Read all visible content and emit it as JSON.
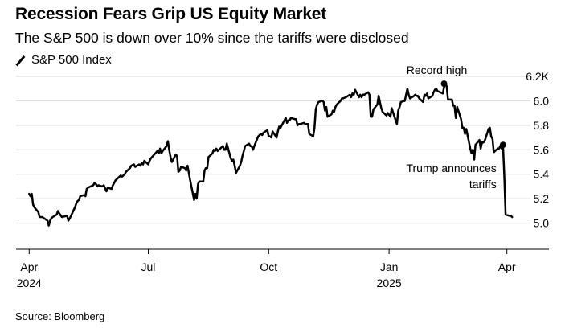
{
  "chart_data": {
    "type": "line",
    "title": "Recession Fears Grip US Equity Market",
    "subtitle": "The S&P 500 is down over 10% since the tariffs were disclosed",
    "legend": [
      {
        "label": "S&P 500 Index",
        "marker": "line"
      }
    ],
    "source": "Source: Bloomberg",
    "ylabel": "",
    "xlabel": "",
    "ylim": [
      4.8,
      6.2
    ],
    "yticks": [
      {
        "value": 5.0,
        "label": "5.0"
      },
      {
        "value": 5.2,
        "label": "5.2"
      },
      {
        "value": 5.4,
        "label": "5.4"
      },
      {
        "value": 5.6,
        "label": "5.6"
      },
      {
        "value": 5.8,
        "label": "5.8"
      },
      {
        "value": 6.0,
        "label": "6.0"
      },
      {
        "value": 6.2,
        "label": "6.2K"
      }
    ],
    "xlim": [
      -10,
      383
    ],
    "xticks": [
      {
        "value": 0,
        "label": "Apr",
        "label2": "2024"
      },
      {
        "value": 91,
        "label": "Jul",
        "label2": ""
      },
      {
        "value": 183,
        "label": "Oct",
        "label2": ""
      },
      {
        "value": 275,
        "label": "Jan",
        "label2": "2025"
      },
      {
        "value": 365,
        "label": "Apr",
        "label2": ""
      }
    ],
    "x_unit": "days since 2024-04-01",
    "series": [
      {
        "name": "S&P 500 Index",
        "color": "#000000",
        "points": [
          [
            0,
            5.24
          ],
          [
            1,
            5.22
          ],
          [
            2,
            5.24
          ],
          [
            3,
            5.15
          ],
          [
            4,
            5.13
          ],
          [
            7,
            5.09
          ],
          [
            8,
            5.05
          ],
          [
            10,
            5.05
          ],
          [
            14,
            5.02
          ],
          [
            15,
            4.98
          ],
          [
            16,
            5.02
          ],
          [
            17,
            5.04
          ],
          [
            18,
            5.05
          ],
          [
            21,
            5.07
          ],
          [
            22,
            5.1
          ],
          [
            23,
            5.08
          ],
          [
            25,
            5.05
          ],
          [
            29,
            5.06
          ],
          [
            30,
            5.02
          ],
          [
            31,
            5.04
          ],
          [
            32,
            5.06
          ],
          [
            35,
            5.13
          ],
          [
            36,
            5.16
          ],
          [
            37,
            5.18
          ],
          [
            38,
            5.19
          ],
          [
            39,
            5.22
          ],
          [
            42,
            5.23
          ],
          [
            43,
            5.22
          ],
          [
            44,
            5.28
          ],
          [
            45,
            5.29
          ],
          [
            49,
            5.31
          ],
          [
            50,
            5.33
          ],
          [
            51,
            5.32
          ],
          [
            52,
            5.3
          ],
          [
            53,
            5.31
          ],
          [
            56,
            5.3
          ],
          [
            57,
            5.31
          ],
          [
            59,
            5.26
          ],
          [
            60,
            5.29
          ],
          [
            63,
            5.28
          ],
          [
            64,
            5.31
          ],
          [
            65,
            5.33
          ],
          [
            66,
            5.35
          ],
          [
            67,
            5.36
          ],
          [
            70,
            5.39
          ],
          [
            71,
            5.38
          ],
          [
            72,
            5.39
          ],
          [
            73,
            5.4
          ],
          [
            74,
            5.42
          ],
          [
            77,
            5.45
          ],
          [
            78,
            5.47
          ],
          [
            80,
            5.48
          ],
          [
            81,
            5.46
          ],
          [
            84,
            5.48
          ],
          [
            85,
            5.47
          ],
          [
            86,
            5.49
          ],
          [
            87,
            5.48
          ],
          [
            88,
            5.51
          ],
          [
            91,
            5.48
          ],
          [
            92,
            5.51
          ],
          [
            93,
            5.53
          ],
          [
            98,
            5.59
          ],
          [
            99,
            5.57
          ],
          [
            100,
            5.61
          ],
          [
            101,
            5.57
          ],
          [
            102,
            5.59
          ],
          [
            105,
            5.63
          ],
          [
            106,
            5.67
          ],
          [
            107,
            5.6
          ],
          [
            108,
            5.54
          ],
          [
            109,
            5.5
          ],
          [
            112,
            5.56
          ],
          [
            113,
            5.55
          ],
          [
            114,
            5.42
          ],
          [
            115,
            5.43
          ],
          [
            116,
            5.46
          ],
          [
            119,
            5.45
          ],
          [
            120,
            5.43
          ],
          [
            121,
            5.47
          ],
          [
            122,
            5.41
          ],
          [
            123,
            5.35
          ],
          [
            126,
            5.19
          ],
          [
            127,
            5.24
          ],
          [
            128,
            5.2
          ],
          [
            129,
            5.32
          ],
          [
            130,
            5.34
          ],
          [
            133,
            5.34
          ],
          [
            134,
            5.43
          ],
          [
            135,
            5.45
          ],
          [
            136,
            5.45
          ],
          [
            137,
            5.54
          ],
          [
            140,
            5.57
          ],
          [
            141,
            5.6
          ],
          [
            142,
            5.59
          ],
          [
            143,
            5.61
          ],
          [
            144,
            5.59
          ],
          [
            147,
            5.62
          ],
          [
            148,
            5.63
          ],
          [
            149,
            5.6
          ],
          [
            150,
            5.6
          ],
          [
            151,
            5.65
          ],
          [
            154,
            5.53
          ],
          [
            155,
            5.51
          ],
          [
            156,
            5.52
          ],
          [
            157,
            5.47
          ],
          [
            158,
            5.41
          ],
          [
            161,
            5.47
          ],
          [
            162,
            5.5
          ],
          [
            163,
            5.55
          ],
          [
            164,
            5.59
          ],
          [
            165,
            5.63
          ],
          [
            168,
            5.65
          ],
          [
            169,
            5.63
          ],
          [
            170,
            5.63
          ],
          [
            171,
            5.6
          ],
          [
            172,
            5.63
          ],
          [
            175,
            5.71
          ],
          [
            176,
            5.72
          ],
          [
            177,
            5.73
          ],
          [
            178,
            5.72
          ],
          [
            179,
            5.74
          ],
          [
            182,
            5.76
          ],
          [
            183,
            5.71
          ],
          [
            184,
            5.71
          ],
          [
            185,
            5.7
          ],
          [
            186,
            5.75
          ],
          [
            189,
            5.7
          ],
          [
            190,
            5.75
          ],
          [
            191,
            5.79
          ],
          [
            192,
            5.78
          ],
          [
            193,
            5.8
          ],
          [
            196,
            5.86
          ],
          [
            197,
            5.82
          ],
          [
            198,
            5.84
          ],
          [
            199,
            5.84
          ],
          [
            200,
            5.86
          ],
          [
            203,
            5.85
          ],
          [
            204,
            5.85
          ],
          [
            205,
            5.8
          ],
          [
            206,
            5.81
          ],
          [
            207,
            5.81
          ],
          [
            210,
            5.82
          ],
          [
            211,
            5.81
          ],
          [
            212,
            5.81
          ],
          [
            213,
            5.81
          ],
          [
            214,
            5.73
          ],
          [
            217,
            5.71
          ],
          [
            218,
            5.78
          ],
          [
            219,
            5.93
          ],
          [
            220,
            5.97
          ],
          [
            221,
            5.99
          ],
          [
            224,
            6.0
          ],
          [
            225,
            5.99
          ],
          [
            226,
            5.92
          ],
          [
            227,
            5.95
          ],
          [
            228,
            5.87
          ],
          [
            231,
            5.89
          ],
          [
            232,
            5.92
          ],
          [
            233,
            5.91
          ],
          [
            234,
            5.95
          ],
          [
            235,
            5.97
          ],
          [
            238,
            6.0
          ],
          [
            239,
            6.02
          ],
          [
            240,
            6.02
          ],
          [
            242,
            6.03
          ],
          [
            245,
            6.05
          ],
          [
            246,
            6.03
          ],
          [
            247,
            6.06
          ],
          [
            248,
            6.05
          ],
          [
            249,
            6.09
          ],
          [
            252,
            6.03
          ],
          [
            253,
            6.05
          ],
          [
            254,
            6.03
          ],
          [
            255,
            6.05
          ],
          [
            256,
            6.05
          ],
          [
            259,
            6.07
          ],
          [
            260,
            6.05
          ],
          [
            261,
            5.87
          ],
          [
            262,
            5.87
          ],
          [
            263,
            5.93
          ],
          [
            266,
            5.97
          ],
          [
            267,
            6.04
          ],
          [
            269,
            5.94
          ],
          [
            270,
            5.91
          ],
          [
            273,
            5.88
          ],
          [
            274,
            5.9
          ],
          [
            276,
            5.87
          ],
          [
            277,
            5.94
          ],
          [
            280,
            5.84
          ],
          [
            281,
            5.81
          ],
          [
            282,
            5.92
          ],
          [
            283,
            5.95
          ],
          [
            284,
            5.99
          ],
          [
            287,
            6.0
          ],
          [
            288,
            6.05
          ],
          [
            289,
            6.1
          ],
          [
            290,
            6.05
          ],
          [
            291,
            6.02
          ],
          [
            294,
            6.04
          ],
          [
            295,
            6.05
          ],
          [
            296,
            6.04
          ],
          [
            297,
            6.04
          ],
          [
            298,
            6.02
          ],
          [
            301,
            5.99
          ],
          [
            302,
            6.05
          ],
          [
            303,
            6.04
          ],
          [
            304,
            6.06
          ],
          [
            305,
            6.02
          ],
          [
            308,
            6.04
          ],
          [
            309,
            6.07
          ],
          [
            310,
            6.09
          ],
          [
            311,
            6.1
          ],
          [
            312,
            6.08
          ],
          [
            316,
            6.06
          ],
          [
            317,
            6.11
          ],
          [
            318,
            6.14
          ],
          [
            319,
            6.12
          ],
          [
            320,
            6.01
          ],
          [
            323,
            6.01
          ],
          [
            324,
            5.96
          ],
          [
            325,
            5.96
          ],
          [
            326,
            5.86
          ],
          [
            327,
            5.95
          ],
          [
            330,
            5.85
          ],
          [
            331,
            5.78
          ],
          [
            332,
            5.78
          ],
          [
            333,
            5.73
          ],
          [
            334,
            5.77
          ],
          [
            337,
            5.61
          ],
          [
            338,
            5.57
          ],
          [
            339,
            5.6
          ],
          [
            340,
            5.52
          ],
          [
            341,
            5.64
          ],
          [
            344,
            5.68
          ],
          [
            345,
            5.61
          ],
          [
            346,
            5.66
          ],
          [
            347,
            5.66
          ],
          [
            348,
            5.67
          ],
          [
            351,
            5.77
          ],
          [
            352,
            5.78
          ],
          [
            353,
            5.71
          ],
          [
            354,
            5.69
          ],
          [
            355,
            5.58
          ],
          [
            358,
            5.61
          ],
          [
            359,
            5.61
          ],
          [
            360,
            5.63
          ],
          [
            361,
            5.61
          ],
          [
            362,
            5.64
          ],
          [
            363,
            5.4
          ],
          [
            364,
            5.07
          ],
          [
            367,
            5.06
          ],
          [
            368,
            5.06
          ],
          [
            369,
            5.05
          ]
        ]
      }
    ],
    "markers": [
      {
        "x": 317,
        "y": 6.14,
        "label": "Record high"
      },
      {
        "x": 362,
        "y": 5.64,
        "label_lines": [
          "Trump announces",
          "tariffs"
        ]
      }
    ]
  }
}
